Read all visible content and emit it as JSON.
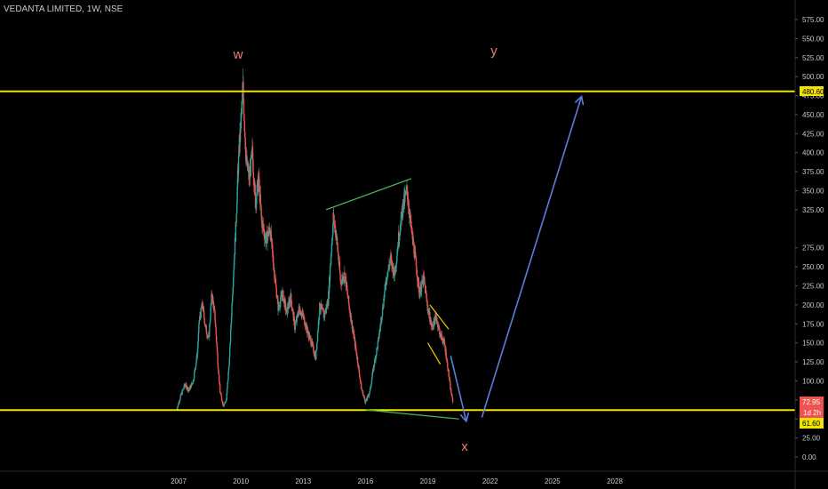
{
  "chart_data": {
    "type": "candlestick",
    "title": "VEDANTA LIMITED, 1W, NSE",
    "x_ticks": [
      "2007",
      "2010",
      "2013",
      "2016",
      "2019",
      "2022",
      "2025",
      "2028"
    ],
    "y_ticks": [
      "575.00",
      "550.00",
      "525.00",
      "500.00",
      "475.00",
      "450.00",
      "425.00",
      "400.00",
      "375.00",
      "350.00",
      "325.00",
      "275.00",
      "250.00",
      "225.00",
      "200.00",
      "175.00",
      "150.00",
      "125.00",
      "100.00",
      "75.00",
      "50.00",
      "25.00",
      "0.00"
    ],
    "y_range": [
      -10,
      595
    ],
    "x_range": [
      2005.2,
      2029.5
    ],
    "grid": false,
    "price_path": [
      [
        2006.9,
        62
      ],
      [
        2007.1,
        80
      ],
      [
        2007.3,
        95
      ],
      [
        2007.5,
        88
      ],
      [
        2007.7,
        100
      ],
      [
        2007.9,
        135
      ],
      [
        2008.0,
        180
      ],
      [
        2008.15,
        200
      ],
      [
        2008.3,
        170
      ],
      [
        2008.45,
        155
      ],
      [
        2008.6,
        215
      ],
      [
        2008.75,
        185
      ],
      [
        2008.9,
        120
      ],
      [
        2009.0,
        85
      ],
      [
        2009.15,
        68
      ],
      [
        2009.3,
        75
      ],
      [
        2009.45,
        130
      ],
      [
        2009.6,
        220
      ],
      [
        2009.75,
        300
      ],
      [
        2009.85,
        370
      ],
      [
        2009.95,
        420
      ],
      [
        2010.1,
        485
      ],
      [
        2010.25,
        390
      ],
      [
        2010.4,
        365
      ],
      [
        2010.55,
        400
      ],
      [
        2010.7,
        335
      ],
      [
        2010.85,
        365
      ],
      [
        2011.0,
        310
      ],
      [
        2011.2,
        285
      ],
      [
        2011.4,
        300
      ],
      [
        2011.6,
        245
      ],
      [
        2011.8,
        195
      ],
      [
        2012.0,
        215
      ],
      [
        2012.2,
        190
      ],
      [
        2012.4,
        210
      ],
      [
        2012.6,
        170
      ],
      [
        2012.8,
        195
      ],
      [
        2013.0,
        185
      ],
      [
        2013.2,
        165
      ],
      [
        2013.4,
        150
      ],
      [
        2013.6,
        130
      ],
      [
        2013.8,
        200
      ],
      [
        2014.0,
        185
      ],
      [
        2014.2,
        205
      ],
      [
        2014.45,
        315
      ],
      [
        2014.6,
        290
      ],
      [
        2014.8,
        230
      ],
      [
        2015.0,
        240
      ],
      [
        2015.2,
        200
      ],
      [
        2015.4,
        165
      ],
      [
        2015.6,
        130
      ],
      [
        2015.8,
        90
      ],
      [
        2016.0,
        72
      ],
      [
        2016.2,
        85
      ],
      [
        2016.4,
        120
      ],
      [
        2016.6,
        150
      ],
      [
        2016.8,
        190
      ],
      [
        2017.0,
        235
      ],
      [
        2017.2,
        260
      ],
      [
        2017.4,
        240
      ],
      [
        2017.6,
        290
      ],
      [
        2017.8,
        330
      ],
      [
        2018.0,
        350
      ],
      [
        2018.2,
        300
      ],
      [
        2018.4,
        260
      ],
      [
        2018.6,
        215
      ],
      [
        2018.8,
        235
      ],
      [
        2019.0,
        195
      ],
      [
        2019.2,
        170
      ],
      [
        2019.4,
        185
      ],
      [
        2019.6,
        160
      ],
      [
        2019.8,
        150
      ],
      [
        2019.95,
        120
      ],
      [
        2020.1,
        88
      ],
      [
        2020.2,
        73
      ]
    ],
    "annotations": {
      "w": "w",
      "x": "x",
      "y": "y"
    },
    "price_labels": {
      "level_high": "480.60",
      "last_price": "72.95",
      "countdown": "1d 2h",
      "level_low": "61.60"
    },
    "horizontal_levels": [
      480.6,
      61.6
    ],
    "trendlines": [
      {
        "color": "#4caf50",
        "points": [
          [
            2014.1,
            325
          ],
          [
            2018.2,
            366
          ]
        ]
      },
      {
        "color": "#4caf50",
        "points": [
          [
            2016.0,
            62
          ],
          [
            2020.5,
            50
          ]
        ]
      },
      {
        "color": "#e6c200",
        "points": [
          [
            2019.1,
            200
          ],
          [
            2020.0,
            168
          ]
        ]
      },
      {
        "color": "#e6c200",
        "points": [
          [
            2019.0,
            150
          ],
          [
            2019.6,
            122
          ]
        ]
      },
      {
        "color": "#5b7fd9",
        "points": [
          [
            2020.1,
            133
          ],
          [
            2020.85,
            47
          ]
        ],
        "arrow": true
      },
      {
        "color": "#5b7fd9",
        "points": [
          [
            2021.6,
            52
          ],
          [
            2026.4,
            474
          ]
        ],
        "arrow": true
      }
    ],
    "colors": {
      "up": "#26a69a",
      "down": "#ef5350",
      "level_line": "#f2e300",
      "label_text_red": "#ef7b6f",
      "axis_text": "#c8c8c8"
    }
  }
}
